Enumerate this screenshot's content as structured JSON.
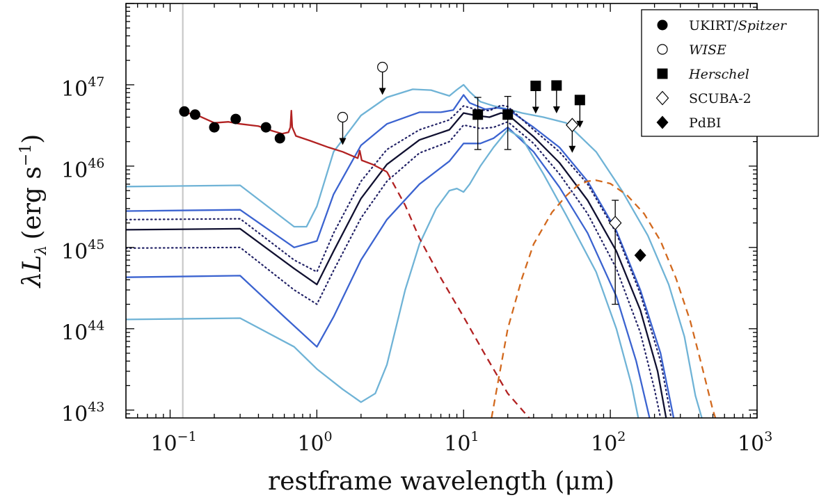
{
  "chart_data": {
    "type": "line",
    "title": "",
    "xlabel": "restframe wavelength (μm)",
    "ylabel_parts": {
      "lambda": "λ",
      "L": "L",
      "sub": "λ",
      "units": "(erg s",
      "units_exp": "−1",
      "units_close": ")"
    },
    "xscale": "log",
    "yscale": "log",
    "xlim": [
      0.05,
      1000
    ],
    "ylim": [
      8e+42,
      1e+48
    ],
    "x_ticks": [
      {
        "value": 0.1,
        "base": "10",
        "exp": "−1"
      },
      {
        "value": 1,
        "base": "10",
        "exp": "0"
      },
      {
        "value": 10,
        "base": "10",
        "exp": "1"
      },
      {
        "value": 100,
        "base": "10",
        "exp": "2"
      },
      {
        "value": 1000,
        "base": "10",
        "exp": "3"
      }
    ],
    "y_ticks": [
      {
        "value": 1e+43,
        "base": "10",
        "exp": "43"
      },
      {
        "value": 1e+44,
        "base": "10",
        "exp": "44"
      },
      {
        "value": 1e+45,
        "base": "10",
        "exp": "45"
      },
      {
        "value": 1e+46,
        "base": "10",
        "exp": "46"
      },
      {
        "value": 1e+47,
        "base": "10",
        "exp": "47"
      }
    ],
    "vertical_line": {
      "x": 0.122,
      "color": "#c8c8c8"
    },
    "series": [
      {
        "name": "envelope-outer-upper",
        "color": "#6fb3d6",
        "style": "solid",
        "points": [
          [
            0.05,
            5.6e+45
          ],
          [
            0.3,
            5.8e+45
          ],
          [
            0.7,
            1.8e+45
          ],
          [
            0.85,
            1.8e+45
          ],
          [
            1.0,
            3.2e+45
          ],
          [
            1.3,
            1.5e+46
          ],
          [
            2,
            4.2e+46
          ],
          [
            3,
            7e+46
          ],
          [
            4.5,
            8.8e+46
          ],
          [
            6,
            8.6e+46
          ],
          [
            8,
            7.3e+46
          ],
          [
            9,
            8.7e+46
          ],
          [
            10,
            1e+47
          ],
          [
            11,
            8.2e+46
          ],
          [
            13,
            6.2e+46
          ],
          [
            16,
            5.5e+46
          ],
          [
            20,
            5e+46
          ],
          [
            25,
            4.5e+46
          ],
          [
            35,
            4e+46
          ],
          [
            50,
            3.4e+46
          ],
          [
            80,
            1.5e+46
          ],
          [
            120,
            5e+45
          ],
          [
            180,
            1.4e+45
          ],
          [
            250,
            3.5e+44
          ],
          [
            320,
            8e+43
          ],
          [
            380,
            1.5e+43
          ],
          [
            420,
            8e+42
          ]
        ]
      },
      {
        "name": "envelope-blue-upper",
        "color": "#3b63d0",
        "style": "solid",
        "points": [
          [
            0.05,
            2.8e+45
          ],
          [
            0.3,
            2.9e+45
          ],
          [
            0.7,
            1e+45
          ],
          [
            1.0,
            1.2e+45
          ],
          [
            1.3,
            4.5e+45
          ],
          [
            2,
            1.8e+46
          ],
          [
            3,
            3.3e+46
          ],
          [
            5,
            4.6e+46
          ],
          [
            7,
            4.6e+46
          ],
          [
            8.5,
            4.9e+46
          ],
          [
            10,
            7.5e+46
          ],
          [
            11,
            6e+46
          ],
          [
            14,
            5e+46
          ],
          [
            17,
            5.2e+46
          ],
          [
            20,
            5e+46
          ],
          [
            30,
            3e+46
          ],
          [
            45,
            1.7e+46
          ],
          [
            70,
            6.5e+45
          ],
          [
            110,
            1.6e+45
          ],
          [
            160,
            3e+44
          ],
          [
            220,
            5e+43
          ],
          [
            270,
            8e+42
          ]
        ]
      },
      {
        "name": "envelope-dotted-upper",
        "color": "#222266",
        "style": "dotted",
        "points": [
          [
            0.05,
            2.2e+45
          ],
          [
            0.3,
            2.25e+45
          ],
          [
            0.7,
            7e+44
          ],
          [
            1.0,
            5e+44
          ],
          [
            1.3,
            1.5e+45
          ],
          [
            2,
            6.5e+45
          ],
          [
            3,
            1.6e+46
          ],
          [
            5,
            2.8e+46
          ],
          [
            8,
            3.7e+46
          ],
          [
            10,
            5.5e+46
          ],
          [
            12,
            5e+46
          ],
          [
            15,
            4.8e+46
          ],
          [
            18,
            5.6e+46
          ],
          [
            20,
            5.4e+46
          ],
          [
            30,
            2.8e+46
          ],
          [
            45,
            1.5e+46
          ],
          [
            70,
            6e+45
          ],
          [
            110,
            1.5e+45
          ],
          [
            160,
            2.7e+44
          ],
          [
            220,
            4e+43
          ],
          [
            260,
            8e+42
          ]
        ]
      },
      {
        "name": "best-fit",
        "color": "#101030",
        "style": "solid",
        "points": [
          [
            0.05,
            1.65e+45
          ],
          [
            0.3,
            1.7e+45
          ],
          [
            0.7,
            5.5e+44
          ],
          [
            1.0,
            3.5e+44
          ],
          [
            1.3,
            9e+44
          ],
          [
            2,
            4e+45
          ],
          [
            3,
            1.05e+46
          ],
          [
            5,
            2.1e+46
          ],
          [
            8,
            2.8e+46
          ],
          [
            10,
            4.5e+46
          ],
          [
            12,
            4.2e+46
          ],
          [
            15,
            4e+46
          ],
          [
            18,
            4.5e+46
          ],
          [
            20,
            4.3e+46
          ],
          [
            30,
            2.3e+46
          ],
          [
            45,
            1.1e+46
          ],
          [
            70,
            3.8e+45
          ],
          [
            110,
            9e+44
          ],
          [
            160,
            1.7e+44
          ],
          [
            210,
            3e+43
          ],
          [
            240,
            8e+42
          ]
        ]
      },
      {
        "name": "envelope-dotted-lower",
        "color": "#222266",
        "style": "dotted",
        "points": [
          [
            0.05,
            9.8e+44
          ],
          [
            0.3,
            1e+45
          ],
          [
            0.7,
            3e+44
          ],
          [
            1.0,
            2e+44
          ],
          [
            1.3,
            5.2e+44
          ],
          [
            2,
            2.3e+45
          ],
          [
            3,
            6.5e+45
          ],
          [
            5,
            1.45e+46
          ],
          [
            8,
            2e+46
          ],
          [
            10,
            3.2e+46
          ],
          [
            13,
            2.9e+46
          ],
          [
            16,
            3e+46
          ],
          [
            20,
            3.5e+46
          ],
          [
            30,
            1.9e+46
          ],
          [
            45,
            8e+45
          ],
          [
            70,
            2.6e+45
          ],
          [
            110,
            5.5e+44
          ],
          [
            160,
            9e+43
          ],
          [
            200,
            1.8e+43
          ],
          [
            220,
            8e+42
          ]
        ]
      },
      {
        "name": "envelope-blue-lower",
        "color": "#3b63d0",
        "style": "solid",
        "points": [
          [
            0.05,
            4.3e+44
          ],
          [
            0.3,
            4.5e+44
          ],
          [
            0.6,
            1.4e+44
          ],
          [
            1.0,
            6e+43
          ],
          [
            1.3,
            1.4e+44
          ],
          [
            2,
            7e+44
          ],
          [
            3,
            2.2e+45
          ],
          [
            5,
            6e+45
          ],
          [
            8,
            1.15e+46
          ],
          [
            10,
            1.9e+46
          ],
          [
            13,
            1.9e+46
          ],
          [
            16,
            2.2e+46
          ],
          [
            20,
            3e+46
          ],
          [
            30,
            1.5e+46
          ],
          [
            45,
            5.5e+45
          ],
          [
            70,
            1.5e+45
          ],
          [
            110,
            2.5e+44
          ],
          [
            150,
            4e+43
          ],
          [
            185,
            8e+42
          ]
        ]
      },
      {
        "name": "envelope-outer-lower",
        "color": "#6fb3d6",
        "style": "solid",
        "points": [
          [
            0.05,
            1.3e+44
          ],
          [
            0.3,
            1.35e+44
          ],
          [
            0.7,
            6e+43
          ],
          [
            1.0,
            3.2e+43
          ],
          [
            1.5,
            1.8e+43
          ],
          [
            2,
            1.25e+43
          ],
          [
            2.5,
            1.6e+43
          ],
          [
            3,
            3.6e+43
          ],
          [
            4,
            3e+44
          ],
          [
            5,
            1.1e+45
          ],
          [
            6.5,
            3e+45
          ],
          [
            8,
            5e+45
          ],
          [
            9,
            5.3e+45
          ],
          [
            10,
            4.8e+45
          ],
          [
            11,
            6e+45
          ],
          [
            13,
            1e+46
          ],
          [
            16,
            1.7e+46
          ],
          [
            20,
            2.8e+46
          ],
          [
            25,
            2.2e+46
          ],
          [
            35,
            8e+45
          ],
          [
            50,
            2.5e+45
          ],
          [
            80,
            5e+44
          ],
          [
            110,
            1e+44
          ],
          [
            140,
            2e+43
          ],
          [
            155,
            8e+42
          ]
        ]
      },
      {
        "name": "quasar-template",
        "color": "#b22222",
        "style": "solid",
        "points": [
          [
            0.12,
            4.6e+46
          ],
          [
            0.15,
            4.3e+46
          ],
          [
            0.2,
            3.4e+46
          ],
          [
            0.25,
            3.5e+46
          ],
          [
            0.3,
            3.3e+46
          ],
          [
            0.4,
            3.1e+46
          ],
          [
            0.5,
            2.7e+46
          ],
          [
            0.58,
            2.5e+46
          ],
          [
            0.64,
            2.6e+46
          ],
          [
            0.66,
            3e+46
          ],
          [
            0.67,
            4.8e+46
          ],
          [
            0.68,
            3e+46
          ],
          [
            0.72,
            2.35e+46
          ],
          [
            0.9,
            2.05e+46
          ],
          [
            1.2,
            1.7e+46
          ],
          [
            1.5,
            1.5e+46
          ],
          [
            1.9,
            1.25e+46
          ],
          [
            1.96,
            1.55e+46
          ],
          [
            2.02,
            1.18e+46
          ],
          [
            2.4,
            1.05e+46
          ],
          [
            3.0,
            8.5e+45
          ]
        ]
      },
      {
        "name": "quasar-extrapolation",
        "color": "#b22222",
        "style": "dashed",
        "points": [
          [
            3.0,
            8.5e+45
          ],
          [
            4,
            3.3e+45
          ],
          [
            5,
            1.3e+45
          ],
          [
            7,
            4.2e+44
          ],
          [
            10,
            1.4e+44
          ],
          [
            14,
            4.8e+43
          ],
          [
            20,
            1.6e+43
          ],
          [
            28,
            8e+42
          ]
        ]
      },
      {
        "name": "dust-greybody",
        "color": "#d2691e",
        "style": "dashed",
        "points": [
          [
            15.5,
            8e+42
          ],
          [
            17,
            2e+43
          ],
          [
            20,
            1e+44
          ],
          [
            25,
            4.2e+44
          ],
          [
            30,
            1.1e+45
          ],
          [
            40,
            2.7e+45
          ],
          [
            50,
            4.3e+45
          ],
          [
            60,
            5.8e+45
          ],
          [
            70,
            6.5e+45
          ],
          [
            80,
            6.7e+45
          ],
          [
            100,
            6.1e+45
          ],
          [
            130,
            4.4e+45
          ],
          [
            170,
            2.6e+45
          ],
          [
            220,
            1.2e+45
          ],
          [
            280,
            4.2e+44
          ],
          [
            350,
            1.25e+44
          ],
          [
            420,
            3.5e+43
          ],
          [
            500,
            1e+43
          ],
          [
            520,
            8e+42
          ]
        ]
      }
    ],
    "photometry": [
      {
        "group": "UKIRT/Spitzer",
        "marker": "filled-circle",
        "x": 0.125,
        "y": 4.7e+46
      },
      {
        "group": "UKIRT/Spitzer",
        "marker": "filled-circle",
        "x": 0.148,
        "y": 4.3e+46
      },
      {
        "group": "UKIRT/Spitzer",
        "marker": "filled-circle",
        "x": 0.2,
        "y": 3e+46
      },
      {
        "group": "UKIRT/Spitzer",
        "marker": "filled-circle",
        "x": 0.28,
        "y": 3.8e+46
      },
      {
        "group": "UKIRT/Spitzer",
        "marker": "filled-circle",
        "x": 0.45,
        "y": 3e+46
      },
      {
        "group": "UKIRT/Spitzer",
        "marker": "filled-circle",
        "x": 0.56,
        "y": 2.2e+46
      },
      {
        "group": "WISE",
        "marker": "open-circle",
        "x": 1.5,
        "y": 4e+46,
        "upper_limit": true
      },
      {
        "group": "WISE",
        "marker": "open-circle",
        "x": 2.8,
        "y": 1.65e+47,
        "upper_limit": true
      },
      {
        "group": "Herschel",
        "marker": "filled-square",
        "x": 12.5,
        "y": 4.3e+46,
        "err_low": 1.6e+46,
        "err_high": 7e+46
      },
      {
        "group": "Herschel",
        "marker": "filled-square",
        "x": 20,
        "y": 4.3e+46,
        "err_low": 1.6e+46,
        "err_high": 7.2e+46
      },
      {
        "group": "Herschel",
        "marker": "filled-square",
        "x": 31,
        "y": 9.7e+46,
        "upper_limit": true
      },
      {
        "group": "Herschel",
        "marker": "filled-square",
        "x": 43,
        "y": 9.8e+46,
        "upper_limit": true
      },
      {
        "group": "Herschel",
        "marker": "filled-square",
        "x": 62,
        "y": 6.5e+46,
        "upper_limit": true
      },
      {
        "group": "SCUBA-2",
        "marker": "open-diamond",
        "x": 55,
        "y": 3.2e+46,
        "upper_limit": true
      },
      {
        "group": "SCUBA-2",
        "marker": "open-diamond",
        "x": 108,
        "y": 2e+45,
        "err_low": 2e+44,
        "err_high": 3.8e+45
      },
      {
        "group": "PdBI",
        "marker": "filled-diamond",
        "x": 160,
        "y": 8e+44
      }
    ],
    "legend": {
      "position": "top-right",
      "entries": [
        {
          "marker": "filled-circle",
          "label": "UKIRT/",
          "label_italic": "Spitzer"
        },
        {
          "marker": "open-circle",
          "label": "",
          "label_italic": "WISE"
        },
        {
          "marker": "filled-square",
          "label": "",
          "label_italic": "Herschel"
        },
        {
          "marker": "open-diamond",
          "label": "SCUBA-2",
          "label_italic": ""
        },
        {
          "marker": "filled-diamond",
          "label": "PdBI",
          "label_italic": ""
        }
      ]
    }
  }
}
